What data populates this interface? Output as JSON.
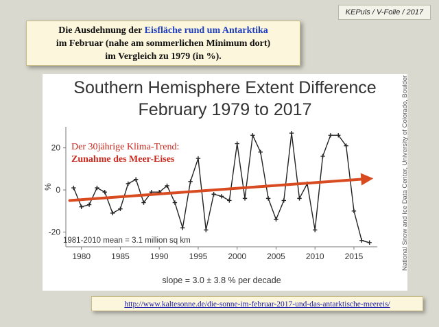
{
  "slide_tag": "KEPuls / V-Folie / 2017",
  "caption": {
    "line1_pre": "Die Ausdehnung der ",
    "line1_highlight": "Eisfläche rund um Antarktika",
    "line2": "im Februar (nahe am sommerlichen Minimum dort)",
    "line3": "im Vergleich zu 1979 (in %)."
  },
  "chart_data": {
    "type": "line",
    "title_line1": "Southern Hemisphere Extent Difference",
    "title_line2": "February 1979 to 2017",
    "ylabel": "%",
    "xlabel": "",
    "xlim": [
      1978,
      2018
    ],
    "ylim": [
      -27,
      30
    ],
    "x_ticks": [
      1980,
      1985,
      1990,
      1995,
      2000,
      2005,
      2010,
      2015
    ],
    "y_ticks": [
      -20,
      0,
      20
    ],
    "mean_note": "1981-2010 mean = 3.1 million sq km",
    "slope_note": "slope = 3.0 ± 3.8 % per decade",
    "credit": "National Snow and Ice Data Center, University of Colorado, Boulder",
    "annotation_line1": "Der 30jährige Klima-Trend:",
    "annotation_line2": "Zunahme des Meer-Eises",
    "series": [
      {
        "x": [
          1979,
          1980,
          1981,
          1982,
          1983,
          1984,
          1985,
          1986,
          1987,
          1988,
          1989,
          1990,
          1991,
          1992,
          1993,
          1994,
          1995,
          1996,
          1997,
          1998,
          1999,
          2000,
          2001,
          2002,
          2003,
          2004,
          2005,
          2006,
          2007,
          2008,
          2009,
          2010,
          2011,
          2012,
          2013,
          2014,
          2015,
          2016,
          2017
        ],
        "values": [
          1,
          -8,
          -7,
          1,
          -1,
          -11,
          -9,
          3,
          5,
          -6,
          -1,
          -1,
          2,
          -6,
          -18,
          4,
          15,
          -19,
          -2,
          -3,
          -5,
          22,
          -4,
          26,
          18,
          -4,
          -14,
          -5,
          27,
          -4,
          3,
          -19,
          16,
          26,
          26,
          21,
          -10,
          -24,
          -25
        ],
        "color": "#222222"
      }
    ],
    "trend": {
      "from_x": 1978.5,
      "from_y": -5,
      "to_x": 2017.5,
      "to_y": 5.5,
      "color": "#d84a20"
    }
  },
  "footer_link": "http://www.kaltesonne.de/die-sonne-im-februar-2017-und-das-antarktische-meereis/"
}
